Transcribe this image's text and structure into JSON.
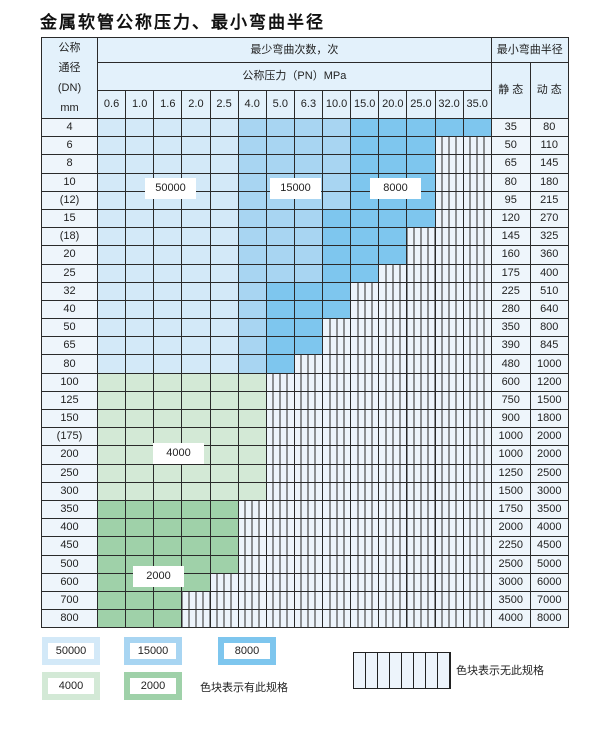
{
  "title": "金属软管公称压力、最小弯曲半径",
  "header": {
    "dn_label": [
      "公称",
      "通径",
      "(DN)",
      "mm"
    ],
    "cycles_label": "最少弯曲次数，次",
    "pressure_label": "公称压力（PN）MPa",
    "radius_label": "最小弯曲半径",
    "static_label": "静 态",
    "dynamic_label": "动 态",
    "pressures": [
      "0.6",
      "1.0",
      "1.6",
      "2.0",
      "2.5",
      "4.0",
      "5.0",
      "6.3",
      "10.0",
      "15.0",
      "20.0",
      "25.0",
      "32.0",
      "35.0"
    ]
  },
  "colors": {
    "50000": "#d3e9f8",
    "15000": "#a8d5f2",
    "8000": "#7ec6ee",
    "4000": "#d3e9d6",
    "2000": "#9fd1a9",
    "none": "#edf4fb"
  },
  "rows": [
    {
      "dn": "4",
      "static": "35",
      "dynamic": "80",
      "cells": [
        50000,
        50000,
        50000,
        50000,
        50000,
        15000,
        15000,
        15000,
        15000,
        8000,
        8000,
        8000,
        8000,
        8000
      ]
    },
    {
      "dn": "6",
      "static": "50",
      "dynamic": "110",
      "cells": [
        50000,
        50000,
        50000,
        50000,
        50000,
        15000,
        15000,
        15000,
        15000,
        8000,
        8000,
        8000,
        0,
        0
      ]
    },
    {
      "dn": "8",
      "static": "65",
      "dynamic": "145",
      "cells": [
        50000,
        50000,
        50000,
        50000,
        50000,
        15000,
        15000,
        15000,
        15000,
        8000,
        8000,
        8000,
        0,
        0
      ]
    },
    {
      "dn": "10",
      "static": "80",
      "dynamic": "180",
      "cells": [
        50000,
        50000,
        50000,
        50000,
        50000,
        15000,
        15000,
        15000,
        15000,
        8000,
        8000,
        8000,
        0,
        0
      ]
    },
    {
      "dn": "(12)",
      "static": "95",
      "dynamic": "215",
      "cells": [
        50000,
        50000,
        50000,
        50000,
        50000,
        15000,
        15000,
        15000,
        15000,
        8000,
        8000,
        8000,
        0,
        0
      ]
    },
    {
      "dn": "15",
      "static": "120",
      "dynamic": "270",
      "cells": [
        50000,
        50000,
        50000,
        50000,
        50000,
        15000,
        15000,
        15000,
        8000,
        8000,
        8000,
        8000,
        0,
        0
      ]
    },
    {
      "dn": "(18)",
      "static": "145",
      "dynamic": "325",
      "cells": [
        50000,
        50000,
        50000,
        50000,
        50000,
        15000,
        15000,
        15000,
        8000,
        8000,
        8000,
        0,
        0,
        0
      ]
    },
    {
      "dn": "20",
      "static": "160",
      "dynamic": "360",
      "cells": [
        50000,
        50000,
        50000,
        50000,
        50000,
        15000,
        15000,
        15000,
        8000,
        8000,
        8000,
        0,
        0,
        0
      ]
    },
    {
      "dn": "25",
      "static": "175",
      "dynamic": "400",
      "cells": [
        50000,
        50000,
        50000,
        50000,
        50000,
        15000,
        15000,
        15000,
        8000,
        8000,
        0,
        0,
        0,
        0
      ]
    },
    {
      "dn": "32",
      "static": "225",
      "dynamic": "510",
      "cells": [
        50000,
        50000,
        50000,
        50000,
        50000,
        15000,
        8000,
        8000,
        8000,
        0,
        0,
        0,
        0,
        0
      ]
    },
    {
      "dn": "40",
      "static": "280",
      "dynamic": "640",
      "cells": [
        50000,
        50000,
        50000,
        50000,
        50000,
        15000,
        8000,
        8000,
        8000,
        0,
        0,
        0,
        0,
        0
      ]
    },
    {
      "dn": "50",
      "static": "350",
      "dynamic": "800",
      "cells": [
        50000,
        50000,
        50000,
        50000,
        50000,
        15000,
        8000,
        8000,
        0,
        0,
        0,
        0,
        0,
        0
      ]
    },
    {
      "dn": "65",
      "static": "390",
      "dynamic": "845",
      "cells": [
        50000,
        50000,
        50000,
        50000,
        50000,
        15000,
        8000,
        8000,
        0,
        0,
        0,
        0,
        0,
        0
      ]
    },
    {
      "dn": "80",
      "static": "480",
      "dynamic": "1000",
      "cells": [
        50000,
        50000,
        50000,
        50000,
        50000,
        15000,
        8000,
        0,
        0,
        0,
        0,
        0,
        0,
        0
      ]
    },
    {
      "dn": "100",
      "static": "600",
      "dynamic": "1200",
      "cells": [
        4000,
        4000,
        4000,
        4000,
        4000,
        4000,
        0,
        0,
        0,
        0,
        0,
        0,
        0,
        0
      ]
    },
    {
      "dn": "125",
      "static": "750",
      "dynamic": "1500",
      "cells": [
        4000,
        4000,
        4000,
        4000,
        4000,
        4000,
        0,
        0,
        0,
        0,
        0,
        0,
        0,
        0
      ]
    },
    {
      "dn": "150",
      "static": "900",
      "dynamic": "1800",
      "cells": [
        4000,
        4000,
        4000,
        4000,
        4000,
        4000,
        0,
        0,
        0,
        0,
        0,
        0,
        0,
        0
      ]
    },
    {
      "dn": "(175)",
      "static": "1000",
      "dynamic": "2000",
      "cells": [
        4000,
        4000,
        4000,
        4000,
        4000,
        4000,
        0,
        0,
        0,
        0,
        0,
        0,
        0,
        0
      ]
    },
    {
      "dn": "200",
      "static": "1000",
      "dynamic": "2000",
      "cells": [
        4000,
        4000,
        4000,
        4000,
        4000,
        4000,
        0,
        0,
        0,
        0,
        0,
        0,
        0,
        0
      ]
    },
    {
      "dn": "250",
      "static": "1250",
      "dynamic": "2500",
      "cells": [
        4000,
        4000,
        4000,
        4000,
        4000,
        4000,
        0,
        0,
        0,
        0,
        0,
        0,
        0,
        0
      ]
    },
    {
      "dn": "300",
      "static": "1500",
      "dynamic": "3000",
      "cells": [
        4000,
        4000,
        4000,
        4000,
        4000,
        4000,
        0,
        0,
        0,
        0,
        0,
        0,
        0,
        0
      ]
    },
    {
      "dn": "350",
      "static": "1750",
      "dynamic": "3500",
      "cells": [
        2000,
        2000,
        2000,
        2000,
        2000,
        0,
        0,
        0,
        0,
        0,
        0,
        0,
        0,
        0
      ]
    },
    {
      "dn": "400",
      "static": "2000",
      "dynamic": "4000",
      "cells": [
        2000,
        2000,
        2000,
        2000,
        2000,
        0,
        0,
        0,
        0,
        0,
        0,
        0,
        0,
        0
      ]
    },
    {
      "dn": "450",
      "static": "2250",
      "dynamic": "4500",
      "cells": [
        2000,
        2000,
        2000,
        2000,
        2000,
        0,
        0,
        0,
        0,
        0,
        0,
        0,
        0,
        0
      ]
    },
    {
      "dn": "500",
      "static": "2500",
      "dynamic": "5000",
      "cells": [
        2000,
        2000,
        2000,
        2000,
        2000,
        0,
        0,
        0,
        0,
        0,
        0,
        0,
        0,
        0
      ]
    },
    {
      "dn": "600",
      "static": "3000",
      "dynamic": "6000",
      "cells": [
        2000,
        2000,
        2000,
        2000,
        0,
        0,
        0,
        0,
        0,
        0,
        0,
        0,
        0,
        0
      ]
    },
    {
      "dn": "700",
      "static": "3500",
      "dynamic": "7000",
      "cells": [
        2000,
        2000,
        2000,
        0,
        0,
        0,
        0,
        0,
        0,
        0,
        0,
        0,
        0,
        0
      ]
    },
    {
      "dn": "800",
      "static": "4000",
      "dynamic": "8000",
      "cells": [
        2000,
        2000,
        2000,
        0,
        0,
        0,
        0,
        0,
        0,
        0,
        0,
        0,
        0,
        0
      ]
    }
  ],
  "region_labels": {
    "a": "50000",
    "b": "15000",
    "c": "8000",
    "d": "4000",
    "e": "2000"
  },
  "legend": {
    "items": [
      "50000",
      "15000",
      "8000",
      "4000",
      "2000"
    ],
    "has_spec_text": "色块表示有此规格",
    "no_spec_text": "色块表示无此规格"
  }
}
